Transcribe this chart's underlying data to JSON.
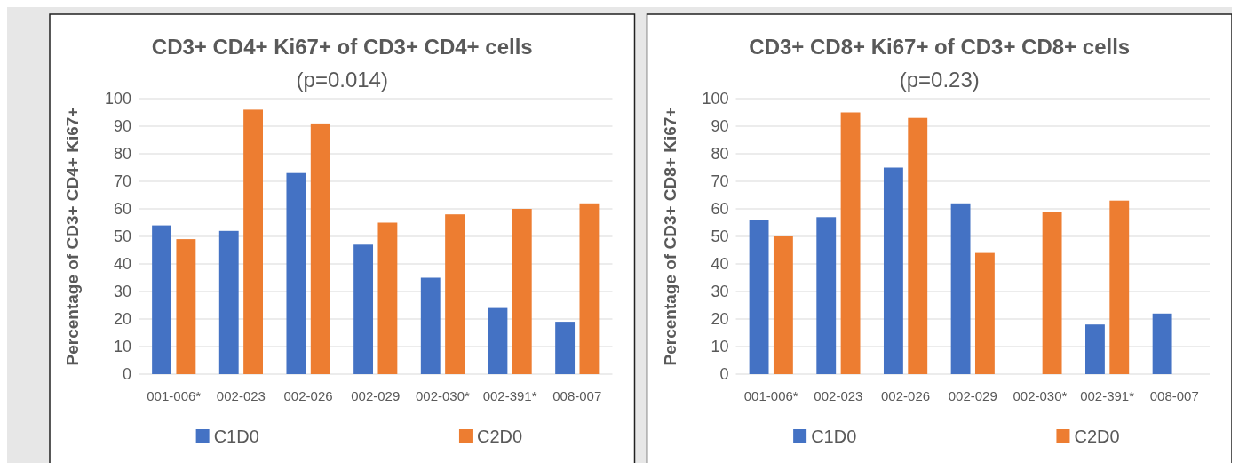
{
  "chart_data": [
    {
      "type": "bar",
      "title": "CD3+ CD4+ Ki67+ of CD3+ CD4+ cells",
      "subtitle": "(p=0.014)",
      "ylabel": "Percentage of CD3+ CD4+ Ki67+",
      "categories": [
        "001-006*",
        "002-023",
        "002-026",
        "002-029",
        "002-030*",
        "002-391*",
        "008-007"
      ],
      "series": [
        {
          "name": "C1D0",
          "color": "#4472c4",
          "values": [
            54,
            52,
            73,
            47,
            35,
            24,
            19
          ]
        },
        {
          "name": "C2D0",
          "color": "#ed7d31",
          "values": [
            49,
            96,
            91,
            55,
            58,
            60,
            62
          ]
        }
      ],
      "ylim": [
        0,
        100
      ],
      "yticks": [
        0,
        10,
        20,
        30,
        40,
        50,
        60,
        70,
        80,
        90,
        100
      ],
      "grid": "y",
      "legend": "bottom"
    },
    {
      "type": "bar",
      "title": "CD3+ CD8+ Ki67+ of CD3+ CD8+ cells",
      "subtitle": "(p=0.23)",
      "ylabel": "Percentage of CD3+ CD8+ Ki67+",
      "categories": [
        "001-006*",
        "002-023",
        "002-026",
        "002-029",
        "002-030*",
        "002-391*",
        "008-007"
      ],
      "series": [
        {
          "name": "C1D0",
          "color": "#4472c4",
          "values": [
            56,
            57,
            75,
            62,
            null,
            18,
            22
          ]
        },
        {
          "name": "C2D0",
          "color": "#ed7d31",
          "values": [
            50,
            95,
            93,
            44,
            59,
            63,
            null
          ]
        }
      ],
      "ylim": [
        0,
        100
      ],
      "yticks": [
        0,
        10,
        20,
        30,
        40,
        50,
        60,
        70,
        80,
        90,
        100
      ],
      "grid": "y",
      "legend": "bottom"
    }
  ]
}
